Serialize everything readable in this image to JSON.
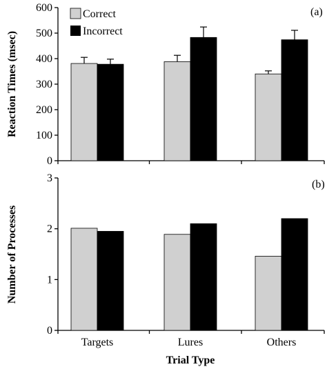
{
  "colors": {
    "correct": "#d0d0d0",
    "incorrect": "#000000"
  },
  "chart_data": [
    {
      "type": "bar",
      "panel_label": "(a)",
      "ylabel": "Reaction Times (msec)",
      "xlabel": "",
      "ylim": [
        0,
        600
      ],
      "yticks": [
        "0",
        "100",
        "200",
        "300",
        "400",
        "500",
        "600"
      ],
      "categories": [
        "Targets",
        "Lures",
        "Others"
      ],
      "show_category_labels": false,
      "legend": {
        "placement": "top-left",
        "entries": [
          "Correct",
          "Incorrect"
        ]
      },
      "series": [
        {
          "name": "Correct",
          "values": [
            381,
            388,
            340
          ],
          "errors": [
            24,
            25,
            12
          ]
        },
        {
          "name": "Incorrect",
          "values": [
            378,
            483,
            474
          ],
          "errors": [
            20,
            41,
            37
          ]
        }
      ]
    },
    {
      "type": "bar",
      "panel_label": "(b)",
      "ylabel": "Number of Processes",
      "xlabel": "Trial Type",
      "ylim": [
        0,
        3
      ],
      "yticks": [
        "0",
        "1",
        "2",
        "3"
      ],
      "categories": [
        "Targets",
        "Lures",
        "Others"
      ],
      "show_category_labels": true,
      "series": [
        {
          "name": "Correct",
          "values": [
            2.01,
            1.89,
            1.46
          ]
        },
        {
          "name": "Incorrect",
          "values": [
            1.95,
            2.1,
            2.2
          ]
        }
      ]
    }
  ]
}
